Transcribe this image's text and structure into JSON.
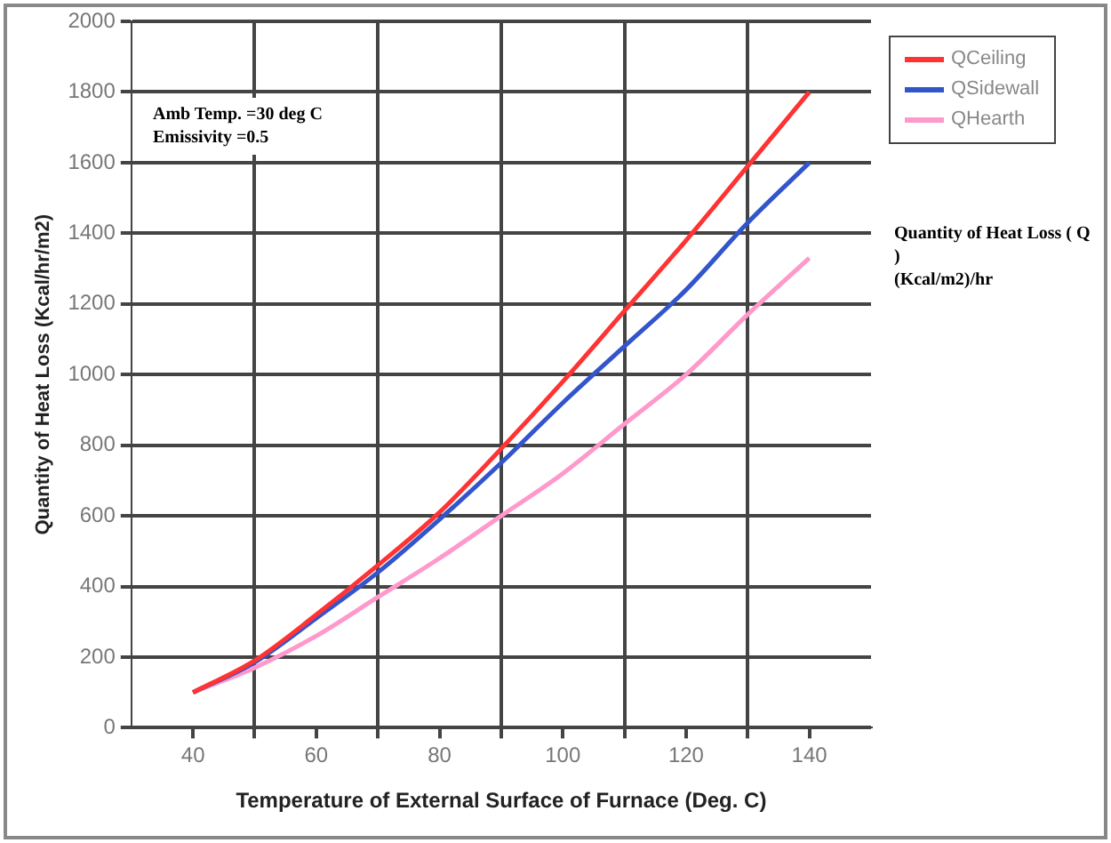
{
  "chart_data": {
    "type": "line",
    "xlabel": "Temperature of External Surface of Furnace (Deg. C)",
    "ylabel": "Quantity of Heat Loss (Kcal/hr/m2)",
    "x": [
      40,
      50,
      60,
      70,
      80,
      90,
      100,
      110,
      120,
      130,
      140
    ],
    "series": [
      {
        "name": "QCeiling",
        "color": "#ff3333",
        "values": [
          100,
          190,
          320,
          460,
          610,
          790,
          980,
          1180,
          1380,
          1590,
          1800
        ]
      },
      {
        "name": "QSidewall",
        "color": "#3355cc",
        "values": [
          100,
          185,
          310,
          440,
          590,
          750,
          920,
          1080,
          1240,
          1430,
          1600
        ]
      },
      {
        "name": "QHearth",
        "color": "#ff99cc",
        "values": [
          100,
          170,
          260,
          370,
          480,
          600,
          720,
          860,
          1000,
          1170,
          1330
        ]
      }
    ],
    "xlim": [
      30,
      150
    ],
    "xticks": [
      40,
      {
        "value": 50,
        "label": null
      },
      60,
      {
        "value": 70,
        "label": null
      },
      80,
      {
        "value": 90,
        "label": null
      },
      100,
      {
        "value": 110,
        "label": null
      },
      120,
      {
        "value": 130,
        "label": null
      },
      140
    ],
    "ylim": [
      0,
      2000
    ],
    "yticks": [
      0,
      200,
      400,
      600,
      800,
      1000,
      1200,
      1400,
      1600,
      1800,
      2000
    ],
    "grid": true,
    "legend": "top right",
    "marker": "none",
    "line_style": "solid",
    "annotations": [
      "Amb Temp. =30 deg C",
      "Emissivity =0.5",
      "Quantity of Heat Loss ( Q )",
      "(Kcal/m2)/hr"
    ]
  }
}
